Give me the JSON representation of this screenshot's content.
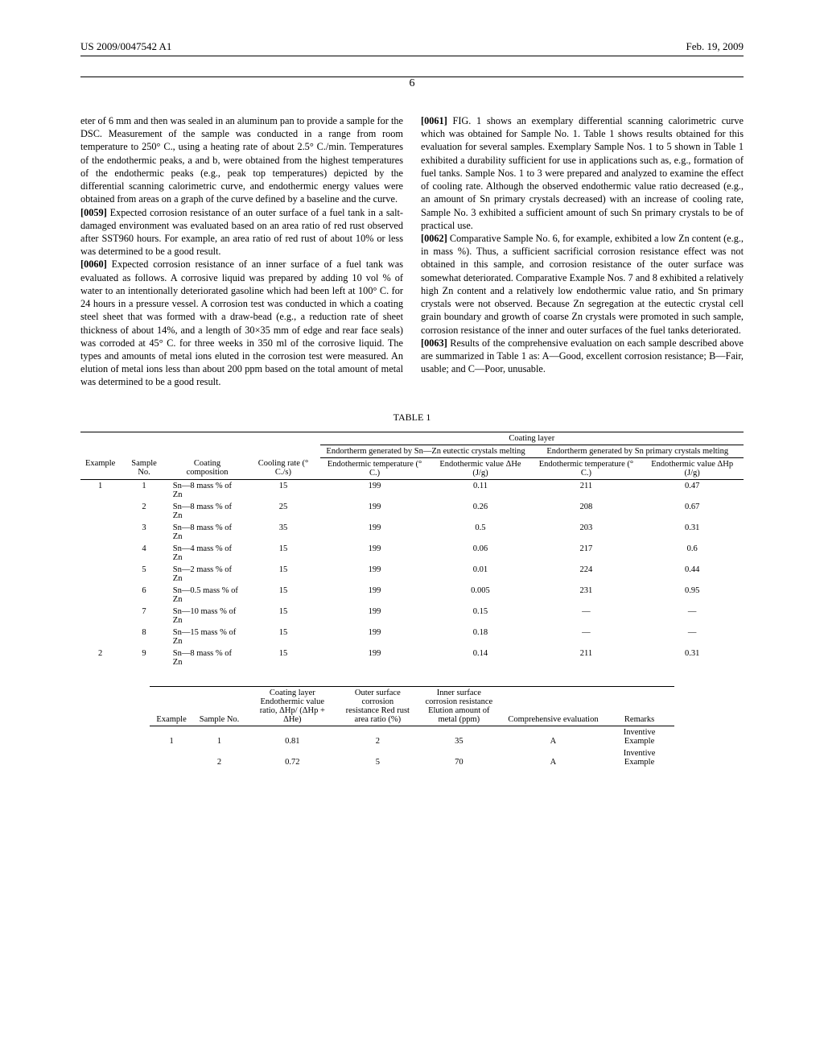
{
  "header": {
    "left": "US 2009/0047542 A1",
    "right": "Feb. 19, 2009"
  },
  "page_number": "6",
  "left_col": {
    "p58": "eter of 6 mm and then was sealed in an aluminum pan to provide a sample for the DSC. Measurement of the sample was conducted in a range from room temperature to 250° C., using a heating rate of about 2.5° C./min. Temperatures of the endothermic peaks, a and b, were obtained from the highest temperatures of the endothermic peaks (e.g., peak top temperatures) depicted by the differential scanning calorimetric curve, and endothermic energy values were obtained from areas on a graph of the curve defined by a baseline and the curve.",
    "p59_num": "[0059]",
    "p59": " Expected corrosion resistance of an outer surface of a fuel tank in a salt-damaged environment was evaluated based on an area ratio of red rust observed after SST960 hours. For example, an area ratio of red rust of about 10% or less was determined to be a good result.",
    "p60_num": "[0060]",
    "p60": " Expected corrosion resistance of an inner surface of a fuel tank was evaluated as follows. A corrosive liquid was prepared by adding 10 vol % of water to an intentionally deteriorated gasoline which had been left at 100° C. for 24 hours in a pressure vessel. A corrosion test was conducted in which a coating steel sheet that was formed with a draw-bead (e.g., a reduction rate of sheet thickness of about 14%, and a length of 30×35 mm of edge and rear face seals) was corroded at 45° C. for three weeks in 350 ml of the corrosive liquid. The types and amounts of metal ions eluted in the corrosion test were measured. An elution of metal ions less than about 200 ppm based on the total amount of metal was determined to be a good result."
  },
  "right_col": {
    "p61_num": "[0061]",
    "p61": " FIG. 1 shows an exemplary differential scanning calorimetric curve which was obtained for Sample No. 1. Table 1 shows results obtained for this evaluation for several samples. Exemplary Sample Nos. 1 to 5 shown in Table 1 exhibited a durability sufficient for use in applications such as, e.g., formation of fuel tanks. Sample Nos. 1 to 3 were prepared and analyzed to examine the effect of cooling rate. Although the observed endothermic value ratio decreased (e.g., an amount of Sn primary crystals decreased) with an increase of cooling rate, Sample No. 3 exhibited a sufficient amount of such Sn primary crystals to be of practical use.",
    "p62_num": "[0062]",
    "p62": " Comparative Sample No. 6, for example, exhibited a low Zn content (e.g., in mass %). Thus, a sufficient sacrificial corrosion resistance effect was not obtained in this sample, and corrosion resistance of the outer surface was somewhat deteriorated. Comparative Example Nos. 7 and 8 exhibited a relatively high Zn content and a relatively low endothermic value ratio, and Sn primary crystals were not observed. Because Zn segregation at the eutectic crystal cell grain boundary and growth of coarse Zn crystals were promoted in such sample, corrosion resistance of the inner and outer surfaces of the fuel tanks deteriorated.",
    "p63_num": "[0063]",
    "p63": " Results of the comprehensive evaluation on each sample described above are summarized in Table 1 as: A—Good, excellent corrosion resistance; B—Fair, usable; and C—Poor, unusable."
  },
  "table1": {
    "title": "TABLE 1",
    "super_header": "Coating layer",
    "group1": "Endortherm generated by Sn—Zn eutectic crystals melting",
    "group2": "Endortherm generated by Sn primary crystals melting",
    "headers": {
      "example": "Example",
      "sample_no": "Sample No.",
      "coating_comp": "Coating composition",
      "cooling_rate": "Cooling rate (° C./s)",
      "endo_temp1": "Endothermic temperature (° C.)",
      "endo_val1": "Endothermic value ΔHe (J/g)",
      "endo_temp2": "Endothermic temperature (° C.)",
      "endo_val2": "Endothermic value ΔHp (J/g)"
    },
    "rows": [
      {
        "example": "1",
        "no": "1",
        "comp": "Sn—8 mass % of Zn",
        "rate": "15",
        "t1": "199",
        "v1": "0.11",
        "t2": "211",
        "v2": "0.47"
      },
      {
        "example": "",
        "no": "2",
        "comp": "Sn—8 mass % of Zn",
        "rate": "25",
        "t1": "199",
        "v1": "0.26",
        "t2": "208",
        "v2": "0.67"
      },
      {
        "example": "",
        "no": "3",
        "comp": "Sn—8 mass % of Zn",
        "rate": "35",
        "t1": "199",
        "v1": "0.5",
        "t2": "203",
        "v2": "0.31"
      },
      {
        "example": "",
        "no": "4",
        "comp": "Sn—4 mass % of Zn",
        "rate": "15",
        "t1": "199",
        "v1": "0.06",
        "t2": "217",
        "v2": "0.6"
      },
      {
        "example": "",
        "no": "5",
        "comp": "Sn—2 mass % of Zn",
        "rate": "15",
        "t1": "199",
        "v1": "0.01",
        "t2": "224",
        "v2": "0.44"
      },
      {
        "example": "",
        "no": "6",
        "comp": "Sn—0.5 mass % of Zn",
        "rate": "15",
        "t1": "199",
        "v1": "0.005",
        "t2": "231",
        "v2": "0.95"
      },
      {
        "example": "",
        "no": "7",
        "comp": "Sn—10 mass % of Zn",
        "rate": "15",
        "t1": "199",
        "v1": "0.15",
        "t2": "—",
        "v2": "—"
      },
      {
        "example": "",
        "no": "8",
        "comp": "Sn—15 mass % of Zn",
        "rate": "15",
        "t1": "199",
        "v1": "0.18",
        "t2": "—",
        "v2": "—"
      },
      {
        "example": "2",
        "no": "9",
        "comp": "Sn—8 mass % of Zn",
        "rate": "15",
        "t1": "199",
        "v1": "0.14",
        "t2": "211",
        "v2": "0.31"
      }
    ]
  },
  "table2": {
    "headers": {
      "example": "Example",
      "sample_no": "Sample No.",
      "ratio": "Coating layer Endothermic value ratio, ΔHp/ (ΔHp + ΔHe)",
      "outer": "Outer surface corrosion resistance Red rust area ratio (%)",
      "inner": "Inner surface corrosion resistance Elution amount of metal (ppm)",
      "comp_eval": "Comprehensive evaluation",
      "remarks": "Remarks"
    },
    "rows": [
      {
        "example": "1",
        "no": "1",
        "ratio": "0.81",
        "outer": "2",
        "inner": "35",
        "eval": "A",
        "remarks": "Inventive Example"
      },
      {
        "example": "",
        "no": "2",
        "ratio": "0.72",
        "outer": "5",
        "inner": "70",
        "eval": "A",
        "remarks": "Inventive Example"
      }
    ]
  }
}
